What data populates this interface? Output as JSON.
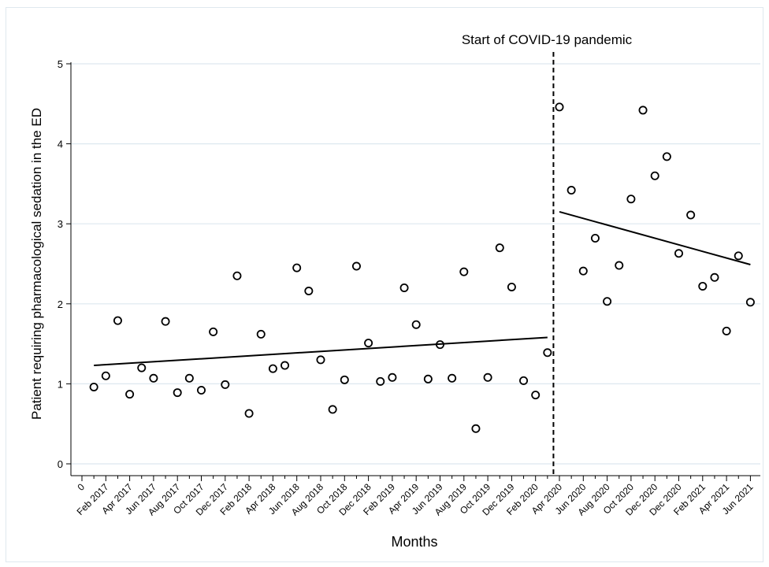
{
  "chart_data": {
    "type": "scatter",
    "title": "",
    "annotation": "Start of COVID-19 pandemic",
    "xlabel": "Months",
    "ylabel": "Patient requiring pharmacological sedation in the ED",
    "ylim": [
      0,
      5
    ],
    "yticks": [
      "0",
      "1",
      "2",
      "3",
      "4",
      "5"
    ],
    "x_tick_labels": [
      "0",
      "Feb 2017",
      "Apr 2017",
      "Jun 2017",
      "Aug 2017",
      "Oct 2017",
      "Dec 2017",
      "Feb 2018",
      "Apr 2018",
      "Jun 2018",
      "Aug 2018",
      "Oct 2018",
      "Dec 2018",
      "Feb 2019",
      "Apr 2019",
      "Jun 2019",
      "Aug 2019",
      "Oct 2019",
      "Dec 2019",
      "Feb 2020",
      "Apr 2020",
      "Jun 2020",
      "Aug 2020",
      "Oct 2020",
      "Dec 2020",
      "Dec 2020",
      "Feb 2021",
      "Apr 2021",
      "Jun 2021"
    ],
    "grid": true,
    "colors": {
      "points": "#000000",
      "grid": "#dde8ef",
      "lines": "#000000"
    },
    "series": [
      {
        "values": [
          0.96,
          1.1,
          1.79,
          0.87,
          1.2,
          1.07,
          1.78,
          0.89,
          1.07,
          0.92,
          1.65,
          0.99,
          2.35,
          0.63,
          1.62,
          1.19,
          1.23,
          2.45,
          2.16,
          1.3,
          0.68,
          1.05,
          2.47,
          1.51,
          1.03,
          1.08,
          2.2,
          1.74,
          1.06,
          1.49,
          1.07,
          2.4,
          0.44,
          1.08,
          2.7,
          2.21,
          1.04,
          0.86,
          1.39,
          4.46,
          3.42,
          2.41,
          2.82,
          2.03,
          2.48,
          3.31,
          4.42,
          3.6,
          3.84,
          2.63,
          3.11,
          2.22,
          2.33,
          1.66,
          2.6,
          2.02
        ]
      }
    ],
    "trend_pre": {
      "from_index": 0,
      "to_index": 38,
      "values": [
        1.23,
        1.58
      ]
    },
    "trend_post": {
      "from_index": 39,
      "to_index": 55,
      "values": [
        3.15,
        2.49
      ]
    },
    "intervention_between_index": [
      38,
      39
    ]
  }
}
